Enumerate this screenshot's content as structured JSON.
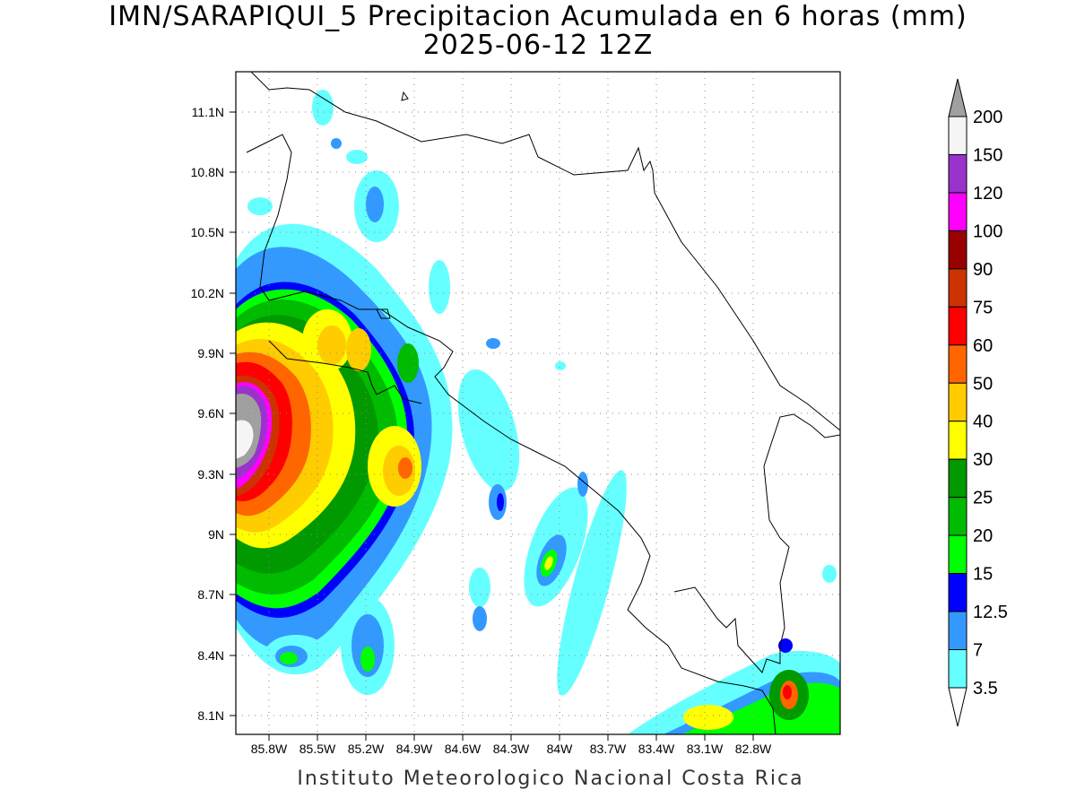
{
  "title": {
    "line1": "IMN/SARAPIQUI_5 Precipitacion Acumulada en 6 horas (mm)",
    "line2": "2025-06-12 12Z"
  },
  "credit": "Instituto Meteorologico Nacional Costa Rica",
  "map": {
    "lat_labels": [
      "11.1N",
      "10.8N",
      "10.5N",
      "10.2N",
      "9.9N",
      "9.6N",
      "9.3N",
      "9N",
      "8.7N",
      "8.4N",
      "8.1N"
    ],
    "lon_labels": [
      "85.8W",
      "85.5W",
      "85.2W",
      "84.9W",
      "84.6W",
      "84.3W",
      "84W",
      "83.7W",
      "83.4W",
      "83.1W",
      "82.8W"
    ]
  },
  "colorbar": {
    "levels": [
      "200",
      "150",
      "120",
      "100",
      "90",
      "75",
      "60",
      "50",
      "40",
      "30",
      "25",
      "20",
      "15",
      "12.5",
      "7",
      "3.5"
    ],
    "colors": [
      "#f5f5f5",
      "#9933cc",
      "#ff00ff",
      "#990000",
      "#cc3300",
      "#ff0000",
      "#ff6600",
      "#ffcc00",
      "#ffff00",
      "#009900",
      "#00bb00",
      "#00ff00",
      "#0000ff",
      "#3399ff",
      "#66ffff"
    ],
    "over_color": "#a0a0a0",
    "under_color": "#ffffff"
  }
}
